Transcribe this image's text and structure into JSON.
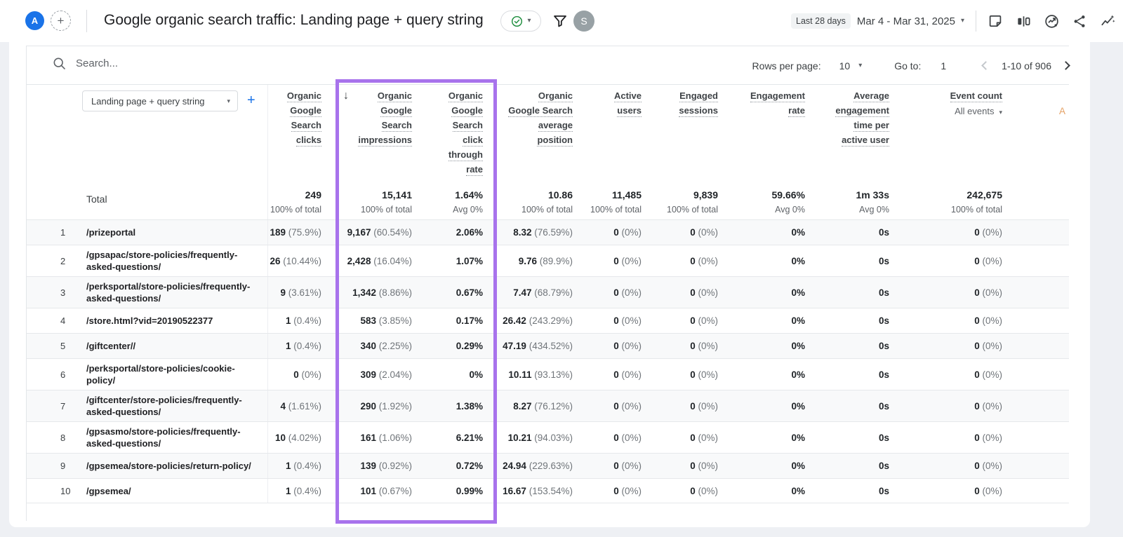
{
  "app": {
    "workspace_avatar": "A",
    "user_avatar": "S",
    "title": "Google organic search traffic: Landing page + query string",
    "date_preset": "Last 28 days",
    "date_range": "Mar 4 - Mar 31, 2025"
  },
  "toolbar": {
    "search_placeholder": "Search...",
    "rows_per_page_label": "Rows per page:",
    "rows_per_page_value": "10",
    "go_to_label": "Go to:",
    "go_to_value": "1",
    "range_label": "1-10 of 906"
  },
  "icons": {
    "caret": "▾",
    "sort_desc": "↓",
    "add": "+",
    "names": [
      "search-icon",
      "filter-funnel-icon",
      "verified-check-icon",
      "note-icon",
      "ab-compare-icon",
      "insights-icon",
      "share-icon",
      "sparkline-insights-icon",
      "chevron-left-icon",
      "chevron-right-icon"
    ]
  },
  "colors": {
    "highlight_purple": "#a873ec",
    "brand_blue": "#1a73e8",
    "check_green": "#1e8e3e"
  },
  "table": {
    "dimension_selector": "Landing page + query string",
    "extra_column_partial": "A",
    "columns": [
      {
        "id": "organic-google-search-clicks",
        "lines": [
          "Organic",
          "Google",
          "Search",
          "clicks"
        ]
      },
      {
        "id": "organic-google-search-impressions",
        "lines": [
          "Organic",
          "Google",
          "Search",
          "impressions"
        ],
        "sorted": true
      },
      {
        "id": "organic-google-search-click-through-rate",
        "lines": [
          "Organic",
          "Google",
          "Search",
          "click",
          "through",
          "rate"
        ]
      },
      {
        "id": "organic-google-search-average-position",
        "lines": [
          "Organic",
          "Google Search",
          "average",
          "position"
        ]
      },
      {
        "id": "active-users",
        "lines": [
          "Active",
          "users"
        ]
      },
      {
        "id": "engaged-sessions",
        "lines": [
          "Engaged",
          "sessions"
        ]
      },
      {
        "id": "engagement-rate",
        "lines": [
          "Engagement",
          "rate"
        ]
      },
      {
        "id": "average-engagement-time-per-active-user",
        "lines": [
          "Average",
          "engagement",
          "time per",
          "active user"
        ]
      },
      {
        "id": "event-count",
        "lines": [
          "Event count"
        ],
        "sub": "All events"
      }
    ],
    "total": {
      "label": "Total",
      "values": [
        "249",
        "15,141",
        "1.64%",
        "10.86",
        "11,485",
        "9,839",
        "59.66%",
        "1m 33s",
        "242,675"
      ],
      "subs": [
        "100% of total",
        "100% of total",
        "Avg 0%",
        "100% of total",
        "100% of total",
        "100% of total",
        "Avg 0%",
        "Avg 0%",
        "100% of total"
      ]
    },
    "rows": [
      {
        "num": "1",
        "page": "/prizeportal",
        "metrics": [
          [
            "189",
            "(75.9%)"
          ],
          [
            "9,167",
            "(60.54%)"
          ],
          [
            "2.06%",
            ""
          ],
          [
            "8.32",
            "(76.59%)"
          ],
          [
            "0",
            "(0%)"
          ],
          [
            "0",
            "(0%)"
          ],
          [
            "0%",
            ""
          ],
          [
            "0s",
            ""
          ],
          [
            "0",
            "(0%)"
          ]
        ]
      },
      {
        "num": "2",
        "page": "/gpsapac/store-policies/frequently-asked-questions/",
        "metrics": [
          [
            "26",
            "(10.44%)"
          ],
          [
            "2,428",
            "(16.04%)"
          ],
          [
            "1.07%",
            ""
          ],
          [
            "9.76",
            "(89.9%)"
          ],
          [
            "0",
            "(0%)"
          ],
          [
            "0",
            "(0%)"
          ],
          [
            "0%",
            ""
          ],
          [
            "0s",
            ""
          ],
          [
            "0",
            "(0%)"
          ]
        ]
      },
      {
        "num": "3",
        "page": "/perksportal/store-policies/frequently-asked-questions/",
        "metrics": [
          [
            "9",
            "(3.61%)"
          ],
          [
            "1,342",
            "(8.86%)"
          ],
          [
            "0.67%",
            ""
          ],
          [
            "7.47",
            "(68.79%)"
          ],
          [
            "0",
            "(0%)"
          ],
          [
            "0",
            "(0%)"
          ],
          [
            "0%",
            ""
          ],
          [
            "0s",
            ""
          ],
          [
            "0",
            "(0%)"
          ]
        ]
      },
      {
        "num": "4",
        "page": "/store.html?vid=20190522377",
        "metrics": [
          [
            "1",
            "(0.4%)"
          ],
          [
            "583",
            "(3.85%)"
          ],
          [
            "0.17%",
            ""
          ],
          [
            "26.42",
            "(243.29%)"
          ],
          [
            "0",
            "(0%)"
          ],
          [
            "0",
            "(0%)"
          ],
          [
            "0%",
            ""
          ],
          [
            "0s",
            ""
          ],
          [
            "0",
            "(0%)"
          ]
        ]
      },
      {
        "num": "5",
        "page": "/giftcenter//",
        "metrics": [
          [
            "1",
            "(0.4%)"
          ],
          [
            "340",
            "(2.25%)"
          ],
          [
            "0.29%",
            ""
          ],
          [
            "47.19",
            "(434.52%)"
          ],
          [
            "0",
            "(0%)"
          ],
          [
            "0",
            "(0%)"
          ],
          [
            "0%",
            ""
          ],
          [
            "0s",
            ""
          ],
          [
            "0",
            "(0%)"
          ]
        ]
      },
      {
        "num": "6",
        "page": "/perksportal/store-policies/cookie-policy/",
        "metrics": [
          [
            "0",
            "(0%)"
          ],
          [
            "309",
            "(2.04%)"
          ],
          [
            "0%",
            ""
          ],
          [
            "10.11",
            "(93.13%)"
          ],
          [
            "0",
            "(0%)"
          ],
          [
            "0",
            "(0%)"
          ],
          [
            "0%",
            ""
          ],
          [
            "0s",
            ""
          ],
          [
            "0",
            "(0%)"
          ]
        ]
      },
      {
        "num": "7",
        "page": "/giftcenter/store-policies/frequently-asked-questions/",
        "metrics": [
          [
            "4",
            "(1.61%)"
          ],
          [
            "290",
            "(1.92%)"
          ],
          [
            "1.38%",
            ""
          ],
          [
            "8.27",
            "(76.12%)"
          ],
          [
            "0",
            "(0%)"
          ],
          [
            "0",
            "(0%)"
          ],
          [
            "0%",
            ""
          ],
          [
            "0s",
            ""
          ],
          [
            "0",
            "(0%)"
          ]
        ]
      },
      {
        "num": "8",
        "page": "/gpsasmo/store-policies/frequently-asked-questions/",
        "metrics": [
          [
            "10",
            "(4.02%)"
          ],
          [
            "161",
            "(1.06%)"
          ],
          [
            "6.21%",
            ""
          ],
          [
            "10.21",
            "(94.03%)"
          ],
          [
            "0",
            "(0%)"
          ],
          [
            "0",
            "(0%)"
          ],
          [
            "0%",
            ""
          ],
          [
            "0s",
            ""
          ],
          [
            "0",
            "(0%)"
          ]
        ]
      },
      {
        "num": "9",
        "page": "/gpsemea/store-policies/return-policy/",
        "metrics": [
          [
            "1",
            "(0.4%)"
          ],
          [
            "139",
            "(0.92%)"
          ],
          [
            "0.72%",
            ""
          ],
          [
            "24.94",
            "(229.63%)"
          ],
          [
            "0",
            "(0%)"
          ],
          [
            "0",
            "(0%)"
          ],
          [
            "0%",
            ""
          ],
          [
            "0s",
            ""
          ],
          [
            "0",
            "(0%)"
          ]
        ]
      },
      {
        "num": "10",
        "page": "/gpsemea/",
        "metrics": [
          [
            "1",
            "(0.4%)"
          ],
          [
            "101",
            "(0.67%)"
          ],
          [
            "0.99%",
            ""
          ],
          [
            "16.67",
            "(153.54%)"
          ],
          [
            "0",
            "(0%)"
          ],
          [
            "0",
            "(0%)"
          ],
          [
            "0%",
            ""
          ],
          [
            "0s",
            ""
          ],
          [
            "0",
            "(0%)"
          ]
        ]
      }
    ]
  }
}
